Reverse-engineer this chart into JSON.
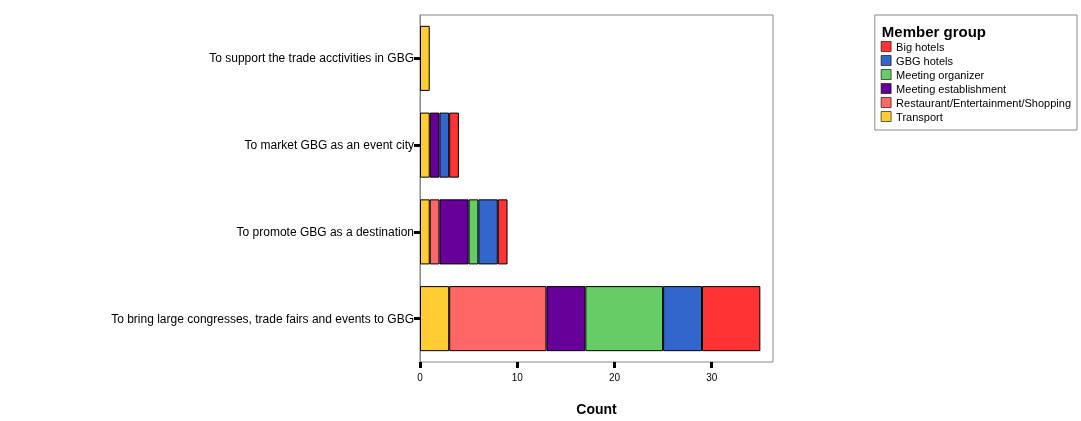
{
  "chart_data": {
    "type": "bar",
    "orientation": "horizontal",
    "stacked": true,
    "xlabel": "Count",
    "legend_title": "Member group",
    "legend": "top right",
    "grid": false,
    "categories": [
      "To support the trade acctivities in GBG",
      "To market GBG as an event city",
      "To promote GBG as a destination",
      "To bring large congresses, trade fairs and events to GBG"
    ],
    "xlim": [
      0,
      36.3
    ],
    "xticks": [
      0,
      10,
      20,
      30
    ],
    "series": [
      {
        "name": "Transport",
        "color": "#ffcc33",
        "values": [
          1,
          1,
          1,
          3
        ]
      },
      {
        "name": "Restaurant/Entertainment/Shopping",
        "color": "#ff6666",
        "values": [
          0,
          0,
          1,
          10
        ]
      },
      {
        "name": "Meeting establishment",
        "color": "#660099",
        "values": [
          0,
          1,
          3,
          4
        ]
      },
      {
        "name": "Meeting organizer",
        "color": "#66cc66",
        "values": [
          0,
          0,
          1,
          8
        ]
      },
      {
        "name": "GBG hotels",
        "color": "#3366cc",
        "values": [
          0,
          1,
          2,
          4
        ]
      },
      {
        "name": "Big hotels",
        "color": "#ff3333",
        "values": [
          0,
          1,
          1,
          6
        ]
      }
    ]
  }
}
